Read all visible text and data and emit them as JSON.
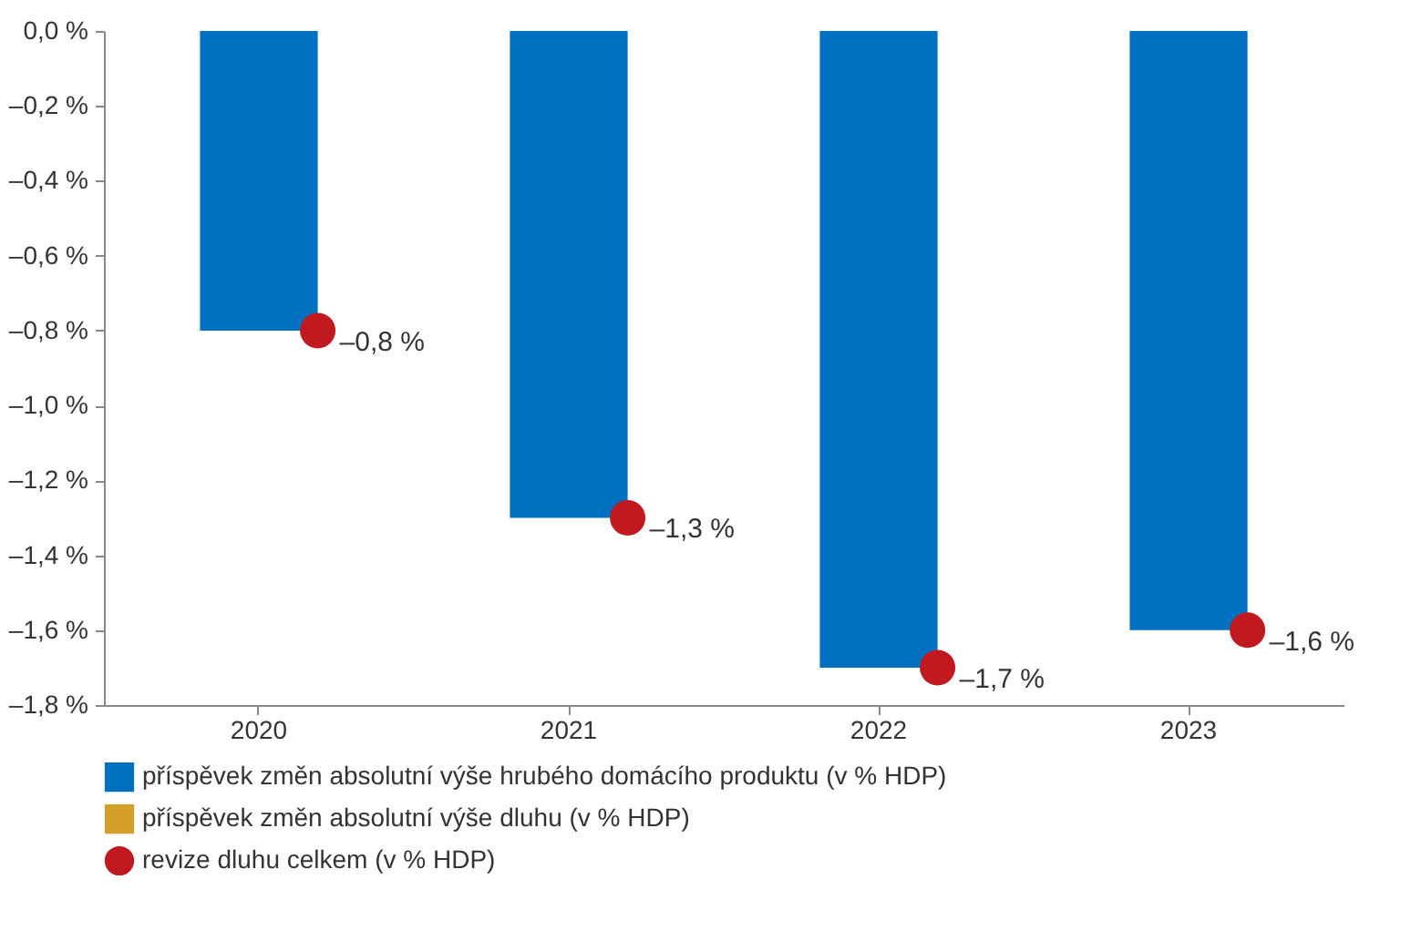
{
  "chart_data": {
    "type": "bar",
    "categories": [
      "2020",
      "2021",
      "2022",
      "2023"
    ],
    "series": [
      {
        "name": "příspěvek změn absolutní výše hrubého domácího produktu (v % HDP)",
        "color": "#0070c0",
        "values": [
          -0.8,
          -1.3,
          -1.7,
          -1.6
        ]
      },
      {
        "name": "příspěvek změn absolutní výše dluhu (v % HDP)",
        "color": "#d4a02a",
        "values": [
          0,
          0,
          0,
          0
        ]
      },
      {
        "name": "revize dluhu celkem (v % HDP)",
        "type": "scatter",
        "color": "#c0191f",
        "values": [
          -0.8,
          -1.3,
          -1.7,
          -1.6
        ],
        "value_labels": [
          "–0,8 %",
          "–1,3 %",
          "–1,7 %",
          "–1,6 %"
        ]
      }
    ],
    "ylim": [
      -1.8,
      0
    ],
    "yticks": [
      {
        "value": 0,
        "label": "0,0 %"
      },
      {
        "value": -0.2,
        "label": "–0,2 %"
      },
      {
        "value": -0.4,
        "label": "–0,4 %"
      },
      {
        "value": -0.6,
        "label": "–0,6 %"
      },
      {
        "value": -0.8,
        "label": "–0,8 %"
      },
      {
        "value": -1.0,
        "label": "–1,0 %"
      },
      {
        "value": -1.2,
        "label": "–1,2 %"
      },
      {
        "value": -1.4,
        "label": "–1,4 %"
      },
      {
        "value": -1.6,
        "label": "–1,6 %"
      },
      {
        "value": -1.8,
        "label": "–1,8 %"
      }
    ],
    "grid": false,
    "legend": "bottom",
    "marker": "circle"
  }
}
